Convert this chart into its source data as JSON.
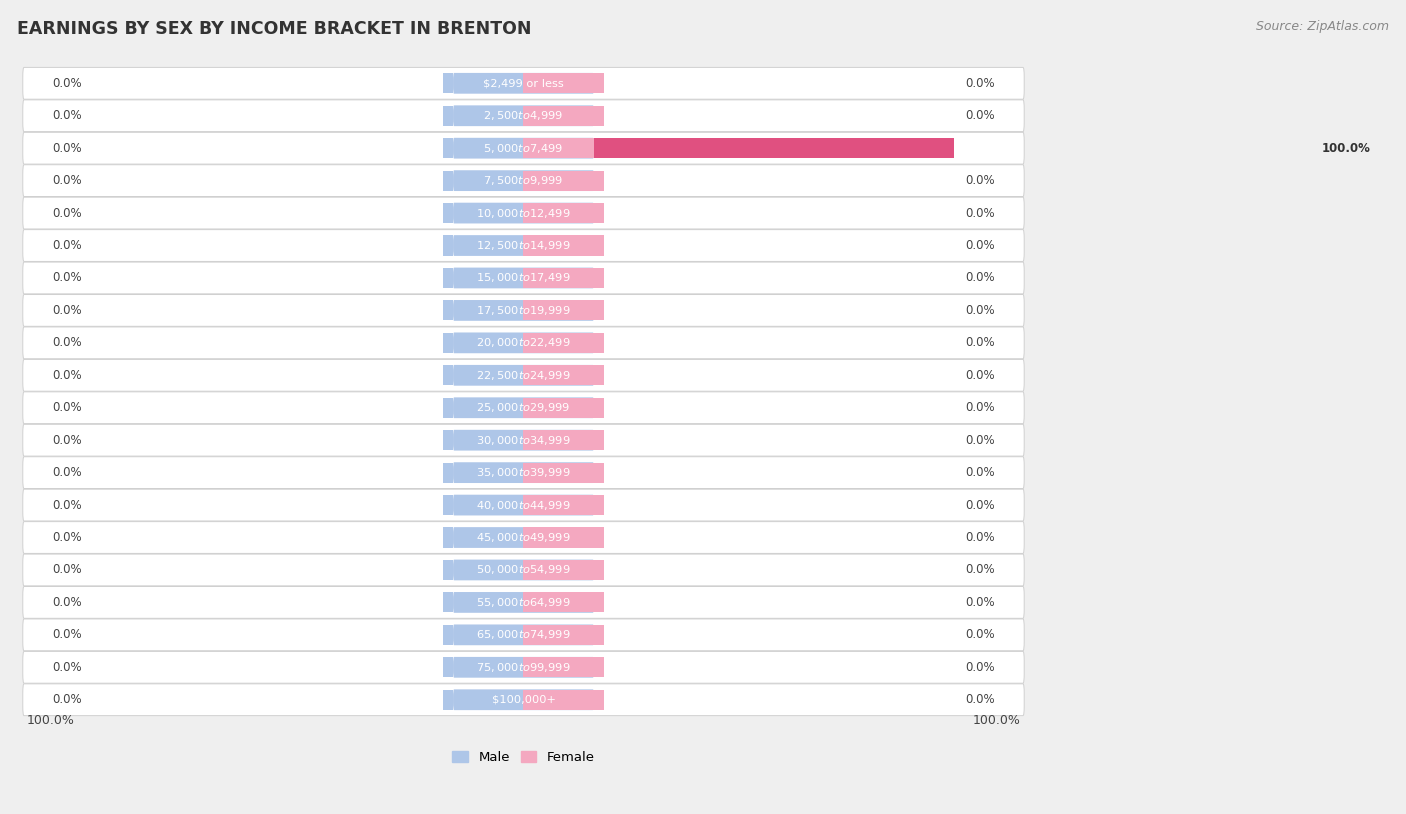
{
  "title": "EARNINGS BY SEX BY INCOME BRACKET IN BRENTON",
  "source": "Source: ZipAtlas.com",
  "categories": [
    "$2,499 or less",
    "$2,500 to $4,999",
    "$5,000 to $7,499",
    "$7,500 to $9,999",
    "$10,000 to $12,499",
    "$12,500 to $14,999",
    "$15,000 to $17,499",
    "$17,500 to $19,999",
    "$20,000 to $22,499",
    "$22,500 to $24,999",
    "$25,000 to $29,999",
    "$30,000 to $34,999",
    "$35,000 to $39,999",
    "$40,000 to $44,999",
    "$45,000 to $49,999",
    "$50,000 to $54,999",
    "$55,000 to $64,999",
    "$65,000 to $74,999",
    "$75,000 to $99,999",
    "$100,000+"
  ],
  "male_values": [
    0.0,
    0.0,
    0.0,
    0.0,
    0.0,
    0.0,
    0.0,
    0.0,
    0.0,
    0.0,
    0.0,
    0.0,
    0.0,
    0.0,
    0.0,
    0.0,
    0.0,
    0.0,
    0.0,
    0.0
  ],
  "female_values": [
    0.0,
    0.0,
    100.0,
    0.0,
    0.0,
    0.0,
    0.0,
    0.0,
    0.0,
    0.0,
    0.0,
    0.0,
    0.0,
    0.0,
    0.0,
    0.0,
    0.0,
    0.0,
    0.0,
    0.0
  ],
  "male_labels": [
    "0.0%",
    "0.0%",
    "0.0%",
    "0.0%",
    "0.0%",
    "0.0%",
    "0.0%",
    "0.0%",
    "0.0%",
    "0.0%",
    "0.0%",
    "0.0%",
    "0.0%",
    "0.0%",
    "0.0%",
    "0.0%",
    "0.0%",
    "0.0%",
    "0.0%",
    "0.0%"
  ],
  "female_labels": [
    "0.0%",
    "0.0%",
    "100.0%",
    "0.0%",
    "0.0%",
    "0.0%",
    "0.0%",
    "0.0%",
    "0.0%",
    "0.0%",
    "0.0%",
    "0.0%",
    "0.0%",
    "0.0%",
    "0.0%",
    "0.0%",
    "0.0%",
    "0.0%",
    "0.0%",
    "0.0%"
  ],
  "male_color": "#aec6e8",
  "female_color": "#f4a8c0",
  "female_highlight_color": "#e05080",
  "bottom_left_label": "100.0%",
  "bottom_right_label": "100.0%",
  "background_color": "#efefef",
  "row_color_odd": "#f8f8f8",
  "row_color_even": "#eeeeee",
  "row_edge_color": "#d0d0d0"
}
